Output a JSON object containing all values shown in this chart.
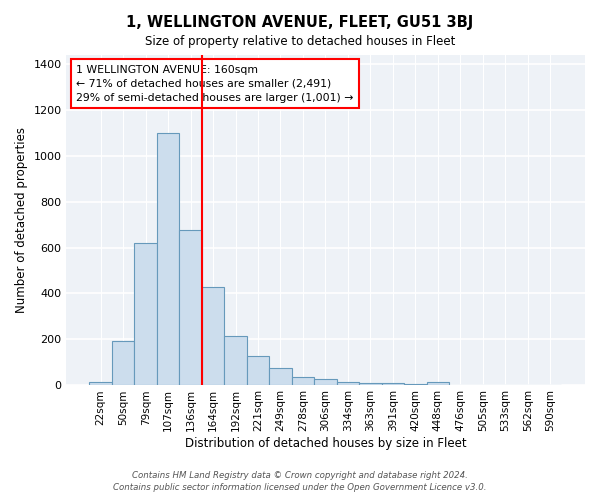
{
  "title": "1, WELLINGTON AVENUE, FLEET, GU51 3BJ",
  "subtitle": "Size of property relative to detached houses in Fleet",
  "xlabel": "Distribution of detached houses by size in Fleet",
  "ylabel": "Number of detached properties",
  "bar_color": "#ccdded",
  "bar_edge_color": "#6699bb",
  "categories": [
    "22sqm",
    "50sqm",
    "79sqm",
    "107sqm",
    "136sqm",
    "164sqm",
    "192sqm",
    "221sqm",
    "249sqm",
    "278sqm",
    "306sqm",
    "334sqm",
    "363sqm",
    "391sqm",
    "420sqm",
    "448sqm",
    "476sqm",
    "505sqm",
    "533sqm",
    "562sqm",
    "590sqm"
  ],
  "values": [
    15,
    192,
    620,
    1100,
    675,
    430,
    215,
    125,
    75,
    35,
    28,
    15,
    10,
    8,
    5,
    12,
    2,
    2,
    1,
    1,
    0
  ],
  "ylim": [
    0,
    1440
  ],
  "yticks": [
    0,
    200,
    400,
    600,
    800,
    1000,
    1200,
    1400
  ],
  "red_line_index": 5,
  "marker_label_line1": "1 WELLINGTON AVENUE: 160sqm",
  "marker_label_line2": "← 71% of detached houses are smaller (2,491)",
  "marker_label_line3": "29% of semi-detached houses are larger (1,001) →",
  "footer1": "Contains HM Land Registry data © Crown copyright and database right 2024.",
  "footer2": "Contains public sector information licensed under the Open Government Licence v3.0.",
  "background_color": "#eef2f7"
}
